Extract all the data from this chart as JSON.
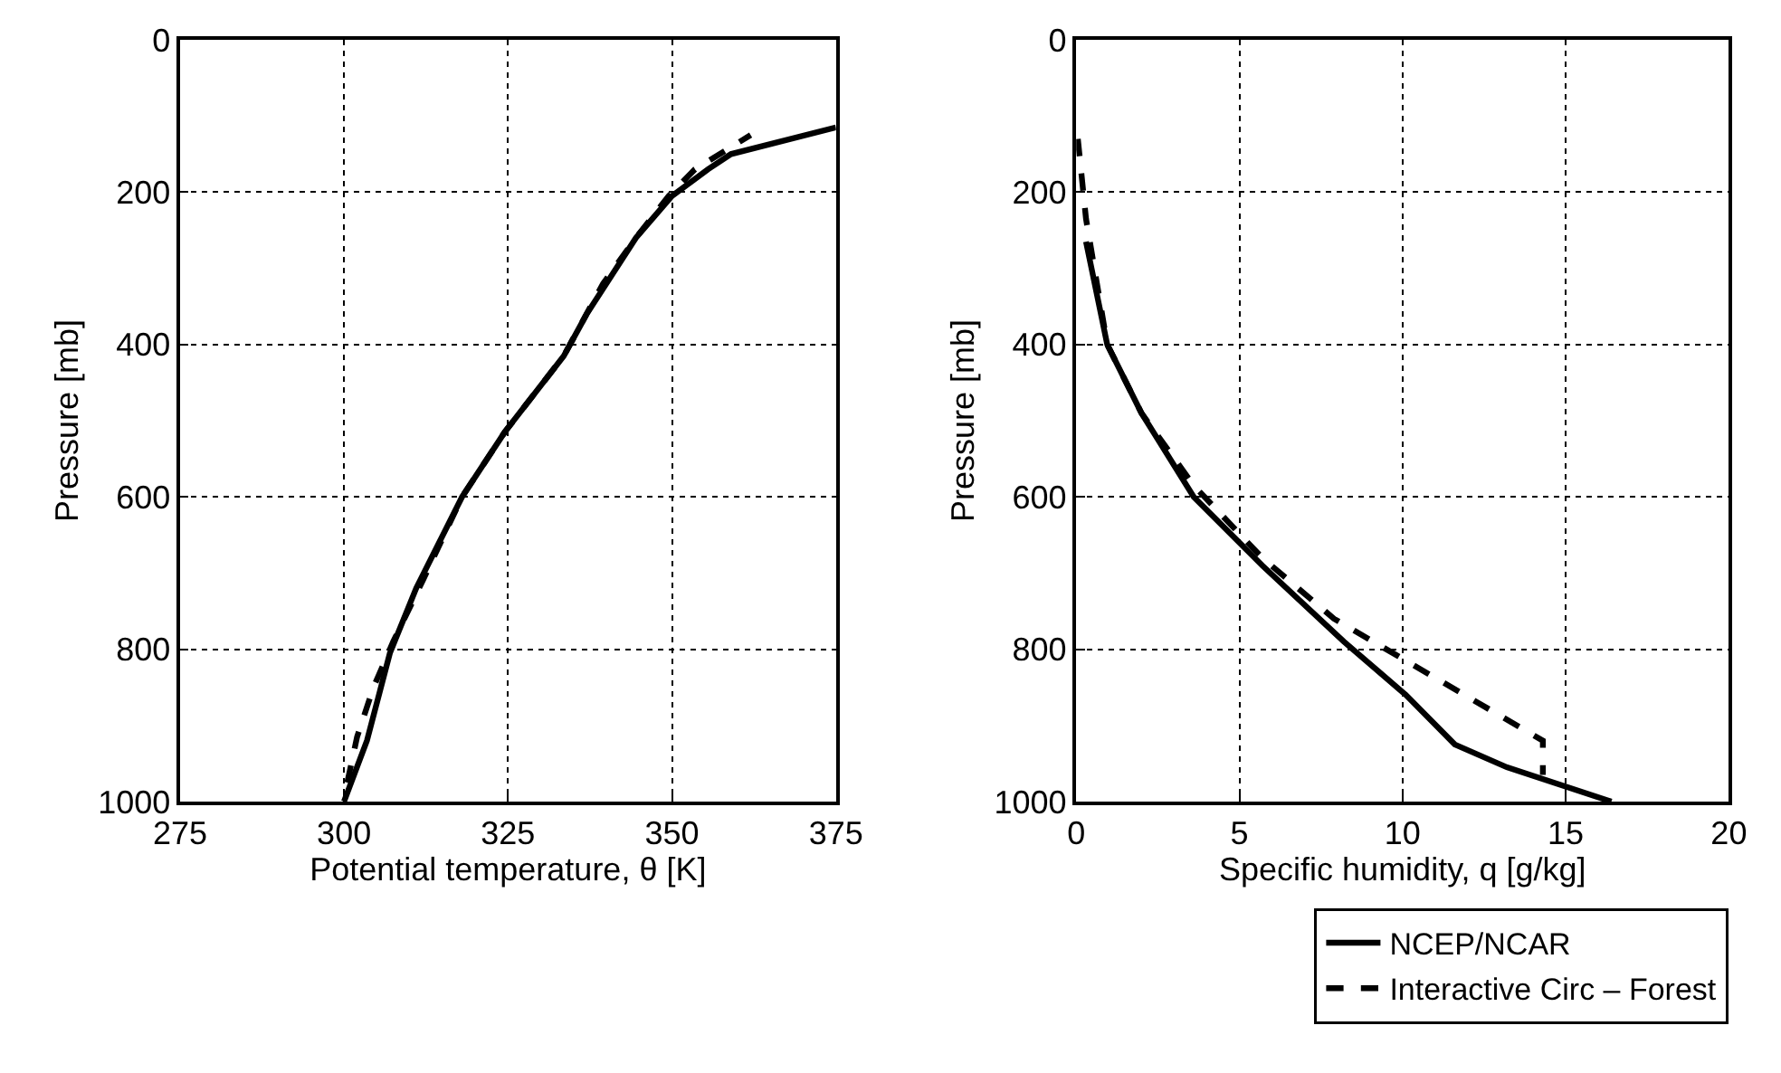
{
  "chart_data": [
    {
      "type": "line",
      "xlabel": "Potential temperature, θ [K]",
      "ylabel": "Pressure [mb]",
      "xlim": [
        275,
        375
      ],
      "xticks": [
        275,
        300,
        325,
        350,
        375
      ],
      "ylim": [
        1000,
        0
      ],
      "yticks": [
        0,
        200,
        400,
        600,
        800,
        1000
      ],
      "grid": true,
      "legend": false,
      "series": [
        {
          "color": "#000000",
          "line_style": "solid",
          "x": [
            300,
            303.5,
            307,
            311,
            318,
            324.5,
            333.5,
            337,
            344.5,
            350,
            355.5,
            359,
            375
          ],
          "values": [
            1000,
            920,
            805,
            720,
            600,
            515,
            415,
            360,
            260,
            205,
            170,
            150,
            115
          ]
        },
        {
          "color": "#000000",
          "line_style": "dashed",
          "x": [
            300.5,
            302,
            304.5,
            307.5,
            312,
            318,
            324.5,
            333.5,
            339.5,
            344.5,
            349.5,
            353.5,
            362
          ],
          "values": [
            975,
            915,
            850,
            790,
            710,
            600,
            515,
            415,
            320,
            260,
            205,
            170,
            125
          ]
        }
      ]
    },
    {
      "type": "line",
      "xlabel": "Specific humidity, q [g/kg]",
      "ylabel": "Pressure [mb]",
      "xlim": [
        0,
        20
      ],
      "xticks": [
        0,
        5,
        10,
        15,
        20
      ],
      "ylim": [
        1000,
        0
      ],
      "yticks": [
        0,
        200,
        400,
        600,
        800,
        1000
      ],
      "grid": true,
      "legend": "bottom right",
      "series": [
        {
          "name": "NCEP/NCAR",
          "color": "#000000",
          "line_style": "solid",
          "x": [
            0.3,
            0.95,
            2.0,
            3.6,
            5.7,
            8.2,
            10.1,
            11.6,
            13.2,
            16.4
          ],
          "values": [
            265,
            400,
            490,
            600,
            690,
            790,
            860,
            925,
            955,
            1000
          ]
        },
        {
          "name": "Interactive Circ – Forest",
          "color": "#000000",
          "line_style": "dashed",
          "x": [
            0.05,
            0.3,
            0.95,
            2.0,
            3.6,
            5.7,
            7.9,
            10.1,
            11.9,
            14.3,
            14.3
          ],
          "values": [
            130,
            235,
            400,
            490,
            585,
            680,
            760,
            815,
            860,
            920,
            965
          ]
        }
      ]
    }
  ]
}
